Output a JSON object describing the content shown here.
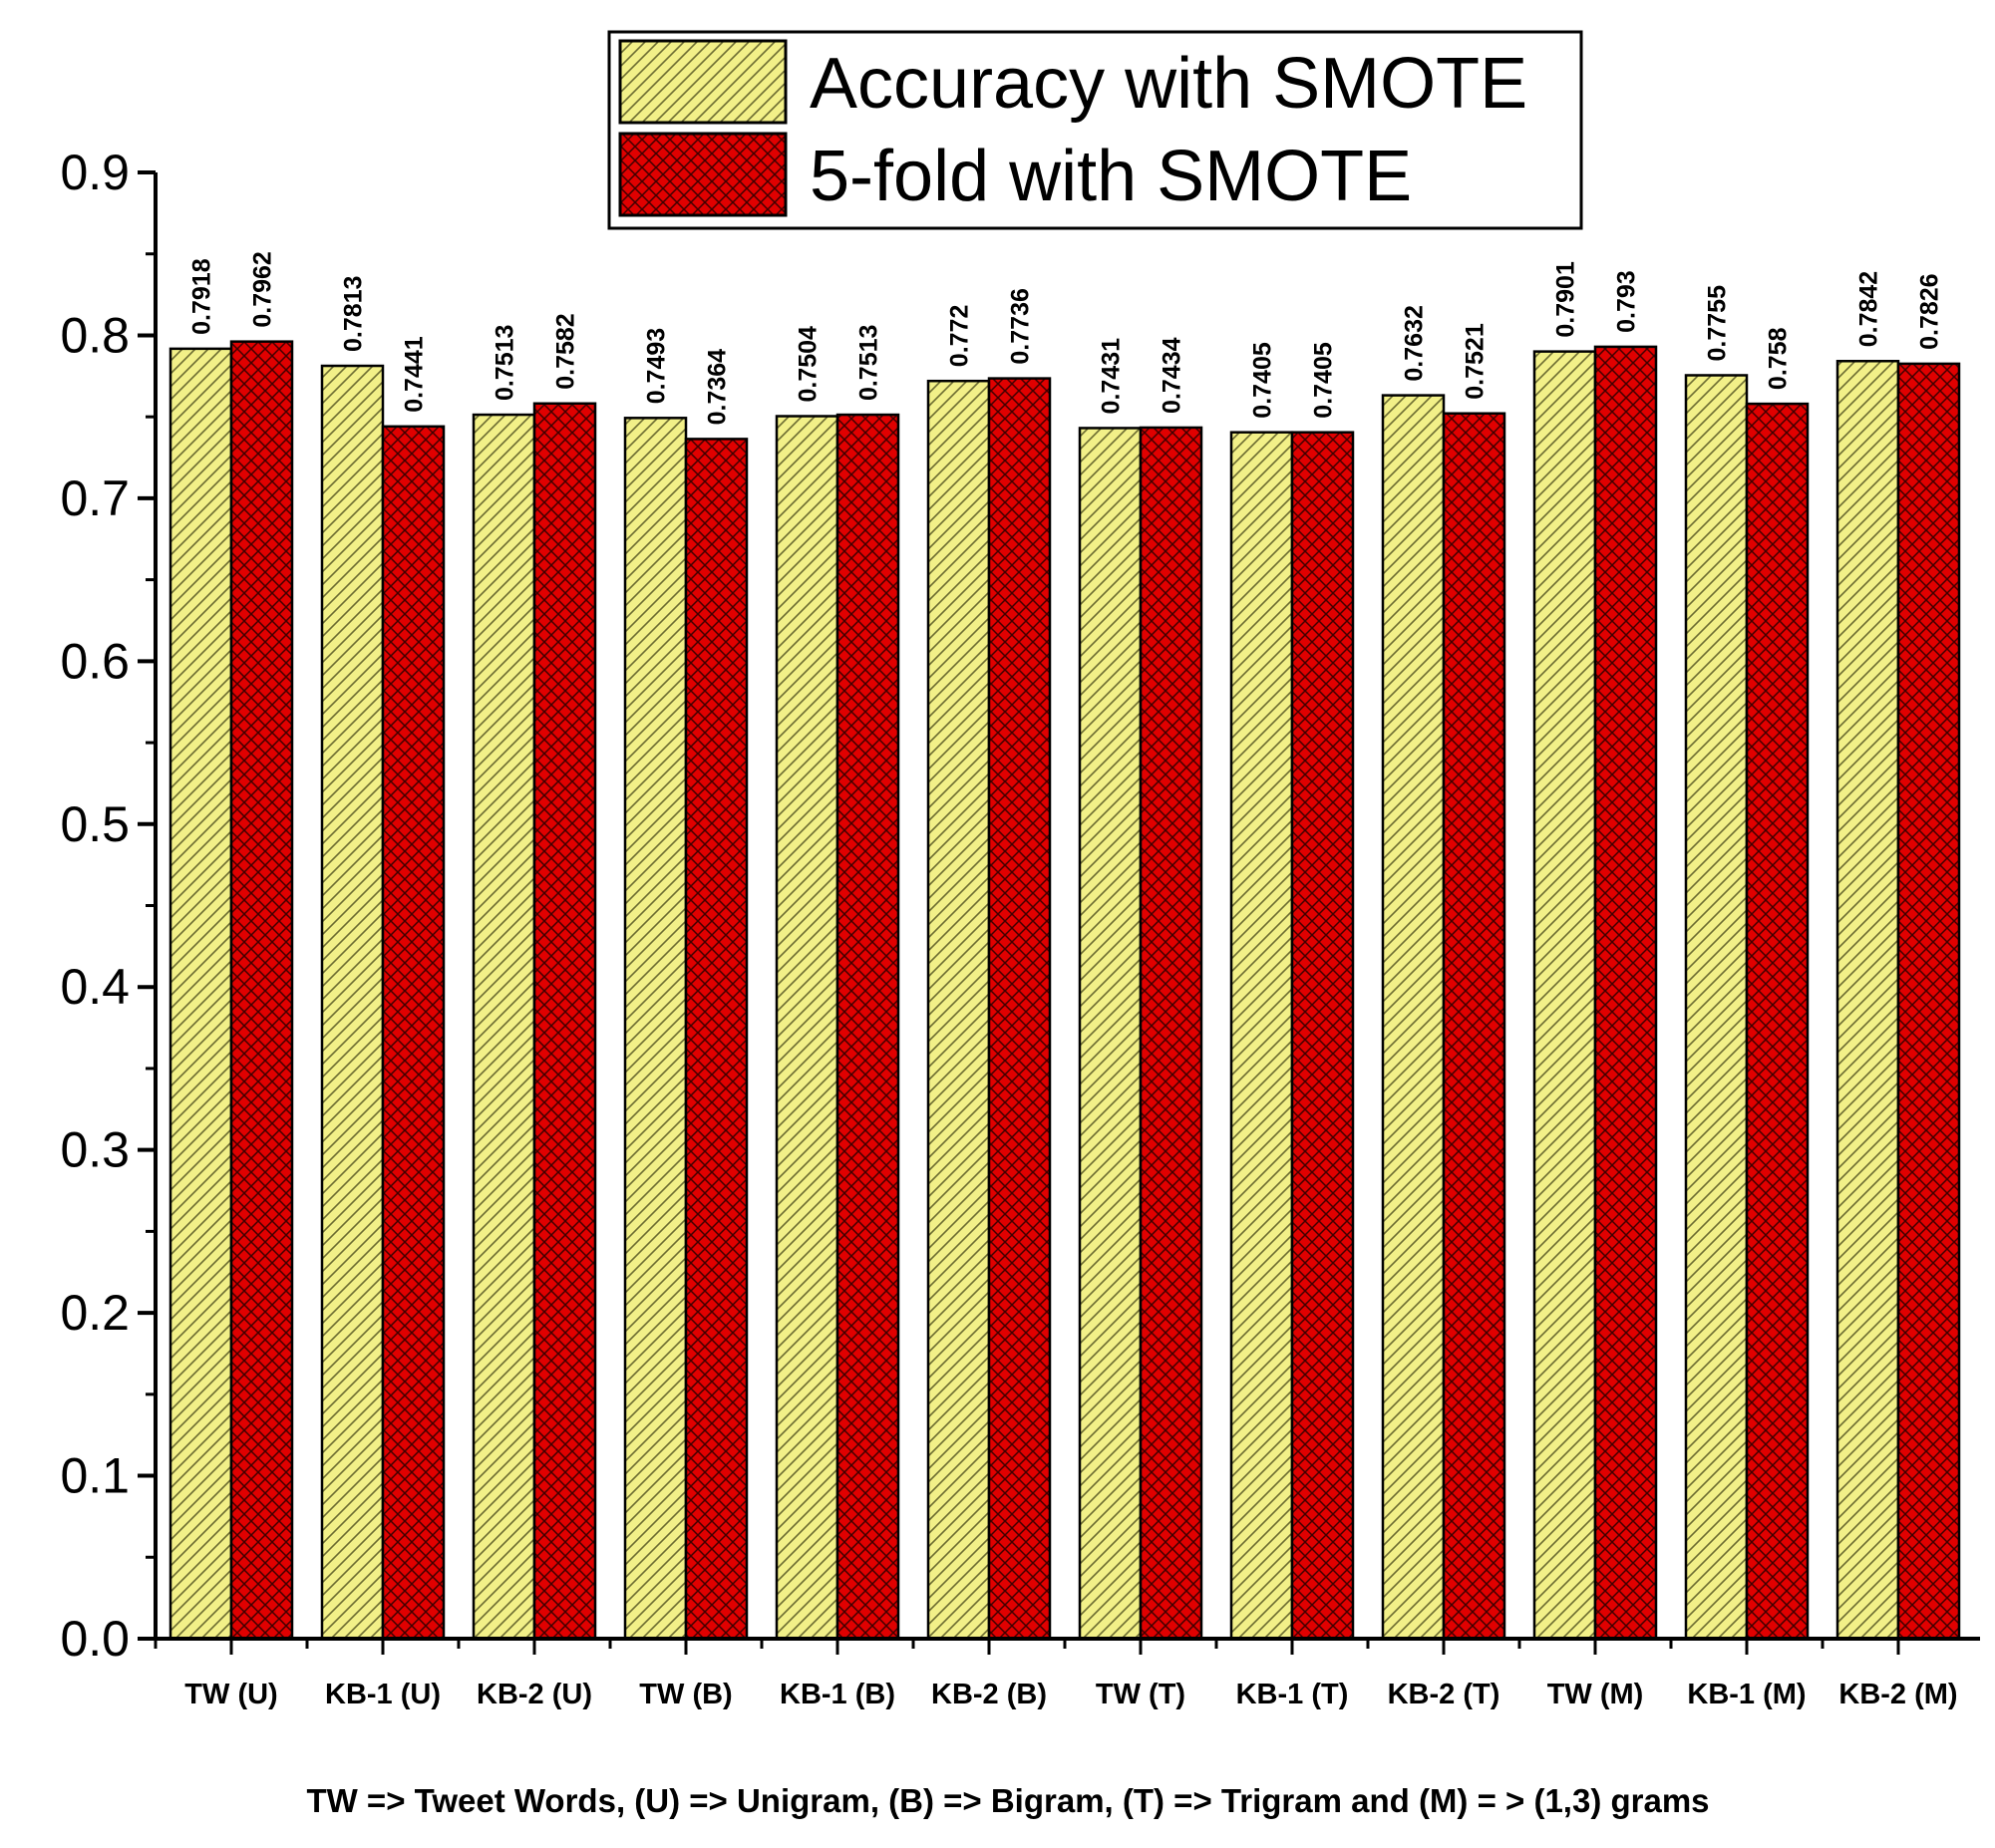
{
  "chart_data": {
    "type": "bar",
    "title": "",
    "xlabel": "",
    "ylabel": "",
    "ylim": [
      0,
      0.9
    ],
    "yticks": [
      "0.0",
      "0.1",
      "0.2",
      "0.3",
      "0.4",
      "0.5",
      "0.6",
      "0.7",
      "0.8",
      "0.9"
    ],
    "grid": false,
    "legend_position": "top-center",
    "categories": [
      "TW (U)",
      "KB-1 (U)",
      "KB-2 (U)",
      "TW (B)",
      "KB-1 (B)",
      "KB-2 (B)",
      "TW (T)",
      "KB-1 (T)",
      "KB-2 (T)",
      "TW (M)",
      "KB-1 (M)",
      "KB-2 (M)"
    ],
    "series": [
      {
        "name": "Accuracy with SMOTE",
        "color": "#f2f088",
        "pattern": "diagonal-hatch",
        "values": [
          0.7918,
          0.7813,
          0.7513,
          0.7493,
          0.7504,
          0.772,
          0.7431,
          0.7405,
          0.7632,
          0.7901,
          0.7755,
          0.7842
        ],
        "labels": [
          "0.7918",
          "0.7813",
          "0.7513",
          "0.7493",
          "0.7504",
          "0.772",
          "0.7431",
          "0.7405",
          "0.7632",
          "0.7901",
          "0.7755",
          "0.7842"
        ]
      },
      {
        "name": "5-fold with SMOTE",
        "color": "#e00000",
        "pattern": "crosshatch",
        "values": [
          0.7962,
          0.7441,
          0.7582,
          0.7364,
          0.7513,
          0.7736,
          0.7434,
          0.7405,
          0.7521,
          0.793,
          0.758,
          0.7826
        ],
        "labels": [
          "0.7962",
          "0.7441",
          "0.7582",
          "0.7364",
          "0.7513",
          "0.7736",
          "0.7434",
          "0.7405",
          "0.7521",
          "0.793",
          "0.758",
          "0.7826"
        ]
      }
    ],
    "annotation": "TW => Tweet Words, (U) => Unigram, (B) => Bigram, (T) => Trigram and (M) = > (1,3) grams"
  }
}
